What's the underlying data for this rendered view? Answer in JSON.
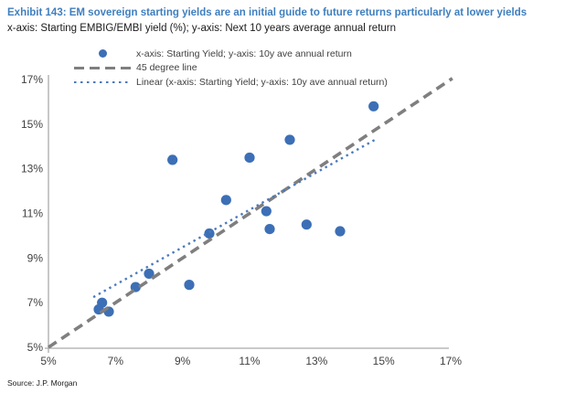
{
  "title": "Exhibit 143: EM sovereign starting yields are an initial guide to future returns particularly at lower yields",
  "subtitle": "x-axis: Starting EMBIG/EMBI yield (%); y-axis: Next 10 years average annual return",
  "source": "Source: J.P. Morgan",
  "colors": {
    "title": "#3F7FBF",
    "marker": "#3C6FB6",
    "trendline": "#4A79BE",
    "line45": "#7F7F7F",
    "axis_line": "#ABABAB",
    "axis_text": "#404040"
  },
  "legend": {
    "items": [
      {
        "marker": "scatter-dot",
        "label": "x-axis: Starting Yield; y-axis: 10y ave annual return"
      },
      {
        "marker": "gray-dashed-line",
        "label": "45 degree line"
      },
      {
        "marker": "blue-dotted-line",
        "label": "Linear (x-axis: Starting Yield; y-axis: 10y ave annual return)"
      }
    ],
    "position": "top-center"
  },
  "chart_data": {
    "type": "scatter",
    "title": "EM sovereign starting yields vs next 10y average annual return",
    "xlabel": "Starting EMBIG/EMBI yield (%)",
    "ylabel": "Next 10 years average annual return",
    "xlim": [
      5,
      17
    ],
    "ylim": [
      5,
      17
    ],
    "x_ticks": [
      5,
      7,
      9,
      11,
      13,
      15,
      17
    ],
    "y_ticks": [
      5,
      7,
      9,
      11,
      13,
      15,
      17
    ],
    "tick_suffix": "%",
    "grid": false,
    "series": [
      {
        "name": "x-axis: Starting Yield; y-axis: 10y ave annual return",
        "type": "scatter",
        "points": [
          [
            6.5,
            6.7
          ],
          [
            6.6,
            7.0
          ],
          [
            6.8,
            6.6
          ],
          [
            7.6,
            7.7
          ],
          [
            8.0,
            8.3
          ],
          [
            8.7,
            13.4
          ],
          [
            9.2,
            7.8
          ],
          [
            9.8,
            10.1
          ],
          [
            10.3,
            11.6
          ],
          [
            11.0,
            13.5
          ],
          [
            11.5,
            11.1
          ],
          [
            11.6,
            10.3
          ],
          [
            12.2,
            14.3
          ],
          [
            12.7,
            10.5
          ],
          [
            13.7,
            10.2
          ],
          [
            14.7,
            15.8
          ]
        ]
      },
      {
        "name": "45 degree line",
        "type": "line-dashed",
        "points": [
          [
            5,
            5
          ],
          [
            17.05,
            17.05
          ]
        ]
      },
      {
        "name": "Linear (x-axis: Starting Yield; y-axis: 10y ave annual return)",
        "type": "line-dotted",
        "points": [
          [
            6.34,
            7.25
          ],
          [
            14.74,
            14.3
          ]
        ]
      }
    ]
  }
}
